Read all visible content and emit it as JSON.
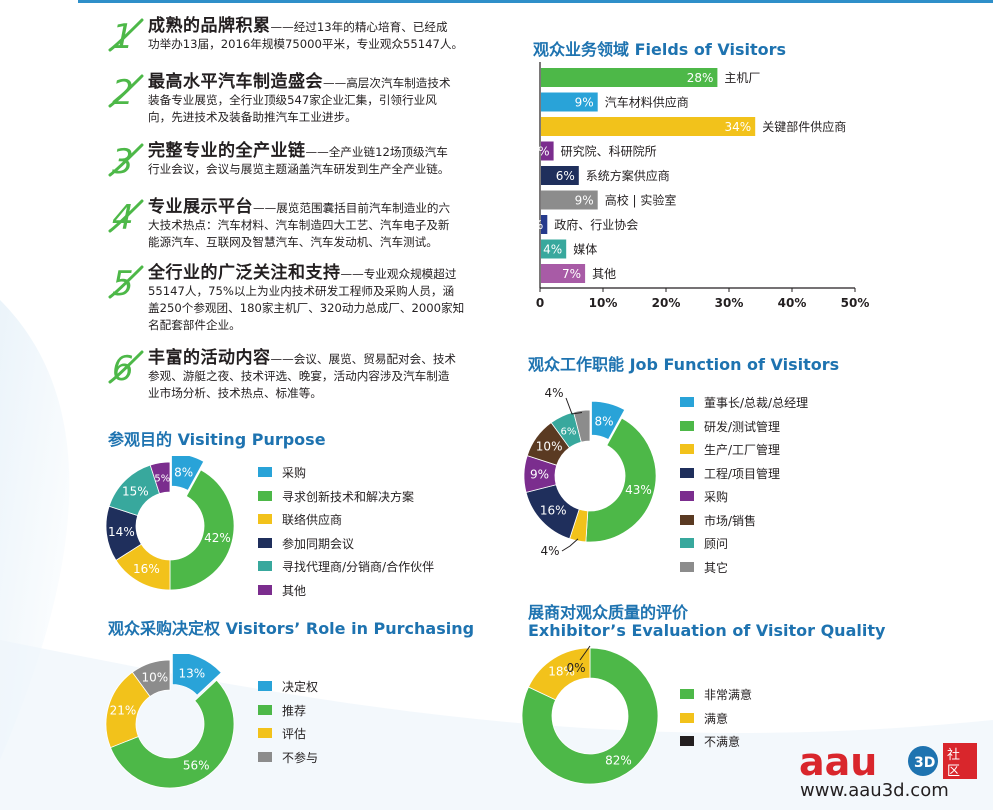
{
  "features": [
    {
      "num": "1",
      "head": "成熟的品牌积累",
      "lines": [
        "经过13年的精心培育、已经成",
        "功举办13届，2016年规模75000平米，专业观众55147人。"
      ]
    },
    {
      "num": "2",
      "head": "最高水平汽车制造盛会",
      "lines": [
        "高层次汽车制造技术",
        "装备专业展览，全行业顶级547家企业汇集，引领行业风",
        "向，先进技术及装备助推汽车工业进步。"
      ]
    },
    {
      "num": "3",
      "head": "完整专业的全产业链",
      "lines": [
        "全产业链12场顶级汽车",
        "行业会议，会议与展览主题涵盖汽车研发到生产全产业链。"
      ]
    },
    {
      "num": "4",
      "head": "专业展示平台",
      "lines": [
        "展览范围囊括目前汽车制造业的六",
        "大技术热点：汽车材料、汽车制造四大工艺、汽车电子及新",
        "能源汽车、互联网及智慧汽车、汽车发动机、汽车测试。"
      ]
    },
    {
      "num": "5",
      "head": "全行业的广泛关注和支持",
      "lines": [
        "专业观众规模超过",
        "55147人，75%以上为业内技术研发工程师及采购人员，涵",
        "盖250个参观团、180家主机厂、320动力总成厂、2000家知",
        "名配套部件企业。"
      ]
    },
    {
      "num": "6",
      "head": "丰富的活动内容",
      "lines": [
        "会议、展览、贸易配对会、技术",
        "参观、游艇之夜、技术评选、晚宴，活动内容涉及汽车制造",
        "业市场分析、技术热点、标准等。"
      ]
    }
  ],
  "chart_data": [
    {
      "type": "bar",
      "title": "观众业务领域 Fields of Visitors",
      "categories": [
        "主机厂",
        "汽车材料供应商",
        "关键部件供应商",
        "研究院、科研院所",
        "系统方案供应商",
        "高校 | 实验室",
        "政府、行业协会",
        "媒体",
        "其他"
      ],
      "values": [
        28,
        9,
        34,
        2,
        6,
        9,
        1,
        4,
        7
      ],
      "value_labels": [
        "28%",
        "9%",
        "34%",
        "2%",
        "6%",
        "9%",
        "1%",
        "4%",
        "7%"
      ],
      "colors": [
        "#4db848",
        "#29a3d8",
        "#f2c21b",
        "#7b2d8e",
        "#1f2f5c",
        "#8c8c8c",
        "#263a8c",
        "#38a89d",
        "#a85ba6"
      ],
      "xlim": [
        0,
        50
      ],
      "xticks": [
        "0",
        "10%",
        "20%",
        "30%",
        "40%",
        "50%"
      ],
      "orientation": "horizontal"
    },
    {
      "type": "pie",
      "title": "观众工作职能 Job Function of Visitors",
      "categories": [
        "董事长/总裁/总经理",
        "研发/测试管理",
        "生产/工厂管理",
        "工程/项目管理",
        "采购",
        "市场/销售",
        "顾问",
        "其它"
      ],
      "values": [
        8,
        43,
        4,
        16,
        9,
        10,
        6,
        4
      ],
      "value_labels": [
        "8%",
        "43%",
        "4%",
        "16%",
        "9%",
        "10%",
        "6%",
        "4%"
      ],
      "colors": [
        "#29a3d8",
        "#4db848",
        "#f2c21b",
        "#1f2f5c",
        "#7b2d8e",
        "#5a3a22",
        "#38a89d",
        "#8c8c8c"
      ],
      "donut": true
    },
    {
      "type": "pie",
      "title": "参观目的 Visiting Purpose",
      "categories": [
        "采购",
        "寻求创新技术和解决方案",
        "联络供应商",
        "参加同期会议",
        "寻找代理商/分销商/合作伙伴",
        "其他"
      ],
      "values": [
        8,
        42,
        16,
        14,
        15,
        5
      ],
      "value_labels": [
        "8%",
        "42%",
        "16%",
        "14%",
        "15%",
        "5%"
      ],
      "colors": [
        "#29a3d8",
        "#4db848",
        "#f2c21b",
        "#1f2f5c",
        "#38a89d",
        "#7b2d8e"
      ],
      "donut": true
    },
    {
      "type": "pie",
      "title": "观众采购决定权 Visitors’ Role in Purchasing",
      "categories": [
        "决定权",
        "推荐",
        "评估",
        "不参与"
      ],
      "values": [
        13,
        56,
        21,
        10
      ],
      "value_labels": [
        "13%",
        "56%",
        "21%",
        "10%"
      ],
      "colors": [
        "#29a3d8",
        "#4db848",
        "#f2c21b",
        "#8c8c8c"
      ],
      "donut": true
    },
    {
      "type": "pie",
      "title": "展商对观众质量的评价",
      "title_en": "Exhibitor’s Evaluation of Visitor Quality",
      "categories": [
        "非常满意",
        "满意",
        "不满意"
      ],
      "values": [
        82,
        18,
        0
      ],
      "value_labels": [
        "82%",
        "18%",
        "0%"
      ],
      "colors": [
        "#4db848",
        "#f2c21b",
        "#231f20"
      ],
      "donut": true
    }
  ],
  "watermark": {
    "brand": "aau3d社区",
    "url": "www.aau3d.com",
    "brand_color": "#d9262c"
  }
}
